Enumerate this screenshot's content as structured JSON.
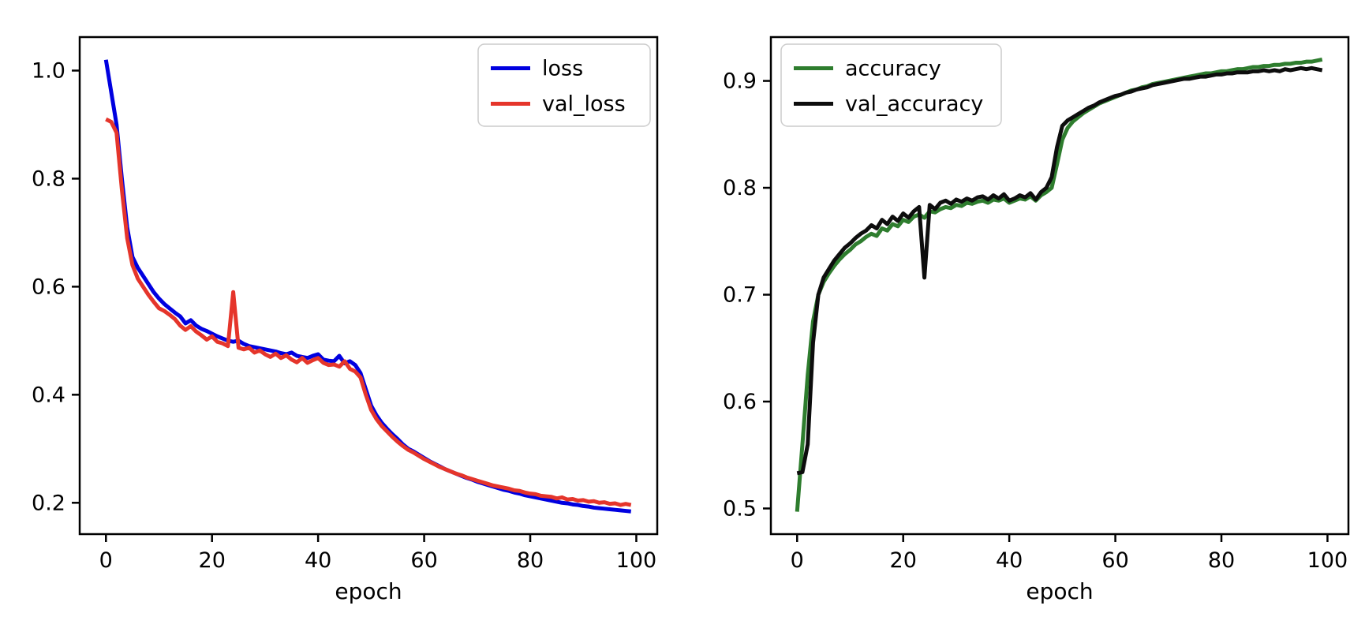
{
  "figure": {
    "background": "#ffffff",
    "text_color": "#000000",
    "spine_color": "#000000",
    "legend_border_color": "#cccccc",
    "legend_background": "#ffffff"
  },
  "chart_data": [
    {
      "id": "loss-chart",
      "type": "line",
      "title": "",
      "xlabel": "epoch",
      "ylabel": "",
      "grid": false,
      "xlim": [
        -4.95,
        103.95
      ],
      "ylim": [
        0.142,
        1.062
      ],
      "x_ticks": [
        0,
        20,
        40,
        60,
        80,
        100
      ],
      "x_tick_labels": [
        "0",
        "20",
        "40",
        "60",
        "80",
        "100"
      ],
      "y_ticks": [
        0.2,
        0.4,
        0.6,
        0.8,
        1.0
      ],
      "y_tick_labels": [
        "0.2",
        "0.4",
        "0.6",
        "0.8",
        "1.0"
      ],
      "legend": {
        "position": "upper-right",
        "labels": [
          "loss",
          "val_loss"
        ]
      },
      "x": [
        0,
        1,
        2,
        3,
        4,
        5,
        6,
        7,
        8,
        9,
        10,
        11,
        12,
        13,
        14,
        15,
        16,
        17,
        18,
        19,
        20,
        21,
        22,
        23,
        24,
        25,
        26,
        27,
        28,
        29,
        30,
        31,
        32,
        33,
        34,
        35,
        36,
        37,
        38,
        39,
        40,
        41,
        42,
        43,
        44,
        45,
        46,
        47,
        48,
        49,
        50,
        51,
        52,
        53,
        54,
        55,
        56,
        57,
        58,
        59,
        60,
        61,
        62,
        63,
        64,
        65,
        66,
        67,
        68,
        69,
        70,
        71,
        72,
        73,
        74,
        75,
        76,
        77,
        78,
        79,
        80,
        81,
        82,
        83,
        84,
        85,
        86,
        87,
        88,
        89,
        90,
        91,
        92,
        93,
        94,
        95,
        96,
        97,
        98,
        99
      ],
      "series": [
        {
          "name": "loss",
          "color": "#0000e0",
          "values": [
            1.02,
            0.96,
            0.9,
            0.8,
            0.71,
            0.655,
            0.635,
            0.62,
            0.605,
            0.59,
            0.578,
            0.568,
            0.56,
            0.552,
            0.545,
            0.532,
            0.538,
            0.528,
            0.522,
            0.518,
            0.513,
            0.508,
            0.504,
            0.5,
            0.498,
            0.5,
            0.494,
            0.49,
            0.488,
            0.486,
            0.484,
            0.482,
            0.48,
            0.477,
            0.475,
            0.478,
            0.472,
            0.47,
            0.468,
            0.472,
            0.475,
            0.465,
            0.463,
            0.462,
            0.472,
            0.458,
            0.462,
            0.455,
            0.44,
            0.41,
            0.38,
            0.362,
            0.348,
            0.337,
            0.327,
            0.318,
            0.308,
            0.3,
            0.295,
            0.289,
            0.283,
            0.277,
            0.272,
            0.267,
            0.262,
            0.258,
            0.254,
            0.25,
            0.246,
            0.243,
            0.239,
            0.236,
            0.233,
            0.23,
            0.227,
            0.224,
            0.222,
            0.219,
            0.217,
            0.214,
            0.212,
            0.21,
            0.208,
            0.206,
            0.204,
            0.202,
            0.2,
            0.199,
            0.197,
            0.196,
            0.194,
            0.193,
            0.191,
            0.19,
            0.189,
            0.188,
            0.187,
            0.186,
            0.185,
            0.184
          ]
        },
        {
          "name": "val_loss",
          "color": "#e5352b",
          "values": [
            0.91,
            0.905,
            0.885,
            0.78,
            0.69,
            0.64,
            0.615,
            0.6,
            0.585,
            0.572,
            0.56,
            0.555,
            0.548,
            0.54,
            0.528,
            0.52,
            0.527,
            0.517,
            0.51,
            0.502,
            0.508,
            0.498,
            0.495,
            0.49,
            0.59,
            0.487,
            0.484,
            0.487,
            0.478,
            0.482,
            0.475,
            0.47,
            0.476,
            0.468,
            0.473,
            0.465,
            0.46,
            0.468,
            0.459,
            0.464,
            0.468,
            0.459,
            0.455,
            0.456,
            0.452,
            0.462,
            0.448,
            0.443,
            0.432,
            0.4,
            0.372,
            0.355,
            0.342,
            0.332,
            0.322,
            0.313,
            0.305,
            0.298,
            0.293,
            0.287,
            0.281,
            0.276,
            0.271,
            0.266,
            0.262,
            0.258,
            0.254,
            0.251,
            0.247,
            0.244,
            0.241,
            0.238,
            0.235,
            0.232,
            0.23,
            0.228,
            0.226,
            0.223,
            0.222,
            0.219,
            0.217,
            0.216,
            0.213,
            0.212,
            0.211,
            0.208,
            0.21,
            0.206,
            0.207,
            0.204,
            0.205,
            0.202,
            0.203,
            0.2,
            0.201,
            0.198,
            0.199,
            0.196,
            0.198,
            0.196
          ]
        }
      ]
    },
    {
      "id": "accuracy-chart",
      "type": "line",
      "title": "",
      "xlabel": "epoch",
      "ylabel": "",
      "grid": false,
      "xlim": [
        -4.95,
        103.95
      ],
      "ylim": [
        0.476,
        0.941
      ],
      "x_ticks": [
        0,
        20,
        40,
        60,
        80,
        100
      ],
      "x_tick_labels": [
        "0",
        "20",
        "40",
        "60",
        "80",
        "100"
      ],
      "y_ticks": [
        0.5,
        0.6,
        0.7,
        0.8,
        0.9
      ],
      "y_tick_labels": [
        "0.5",
        "0.6",
        "0.7",
        "0.8",
        "0.9"
      ],
      "legend": {
        "position": "upper-left",
        "labels": [
          "accuracy",
          "val_accuracy"
        ]
      },
      "x": [
        0,
        1,
        2,
        3,
        4,
        5,
        6,
        7,
        8,
        9,
        10,
        11,
        12,
        13,
        14,
        15,
        16,
        17,
        18,
        19,
        20,
        21,
        22,
        23,
        24,
        25,
        26,
        27,
        28,
        29,
        30,
        31,
        32,
        33,
        34,
        35,
        36,
        37,
        38,
        39,
        40,
        41,
        42,
        43,
        44,
        45,
        46,
        47,
        48,
        49,
        50,
        51,
        52,
        53,
        54,
        55,
        56,
        57,
        58,
        59,
        60,
        61,
        62,
        63,
        64,
        65,
        66,
        67,
        68,
        69,
        70,
        71,
        72,
        73,
        74,
        75,
        76,
        77,
        78,
        79,
        80,
        81,
        82,
        83,
        84,
        85,
        86,
        87,
        88,
        89,
        90,
        91,
        92,
        93,
        94,
        95,
        96,
        97,
        98,
        99
      ],
      "series": [
        {
          "name": "accuracy",
          "color": "#2e7d2e",
          "values": [
            0.497,
            0.56,
            0.625,
            0.675,
            0.7,
            0.712,
            0.72,
            0.727,
            0.733,
            0.738,
            0.742,
            0.747,
            0.75,
            0.754,
            0.757,
            0.755,
            0.762,
            0.76,
            0.766,
            0.764,
            0.77,
            0.768,
            0.773,
            0.775,
            0.772,
            0.778,
            0.777,
            0.78,
            0.782,
            0.781,
            0.784,
            0.783,
            0.786,
            0.785,
            0.787,
            0.788,
            0.786,
            0.789,
            0.788,
            0.79,
            0.786,
            0.788,
            0.79,
            0.789,
            0.792,
            0.788,
            0.793,
            0.796,
            0.8,
            0.822,
            0.845,
            0.856,
            0.862,
            0.866,
            0.87,
            0.873,
            0.876,
            0.879,
            0.881,
            0.883,
            0.885,
            0.887,
            0.889,
            0.891,
            0.892,
            0.894,
            0.895,
            0.897,
            0.898,
            0.899,
            0.9,
            0.901,
            0.902,
            0.903,
            0.904,
            0.905,
            0.906,
            0.907,
            0.907,
            0.908,
            0.909,
            0.909,
            0.91,
            0.911,
            0.911,
            0.912,
            0.913,
            0.913,
            0.914,
            0.914,
            0.915,
            0.915,
            0.916,
            0.916,
            0.917,
            0.917,
            0.918,
            0.918,
            0.919,
            0.92
          ]
        },
        {
          "name": "val_accuracy",
          "color": "#0d0d0d",
          "values": [
            0.533,
            0.534,
            0.56,
            0.655,
            0.7,
            0.716,
            0.724,
            0.732,
            0.738,
            0.744,
            0.748,
            0.753,
            0.757,
            0.76,
            0.765,
            0.762,
            0.77,
            0.766,
            0.773,
            0.769,
            0.776,
            0.772,
            0.778,
            0.782,
            0.716,
            0.784,
            0.78,
            0.786,
            0.788,
            0.785,
            0.789,
            0.787,
            0.79,
            0.788,
            0.791,
            0.792,
            0.789,
            0.793,
            0.79,
            0.794,
            0.788,
            0.79,
            0.793,
            0.791,
            0.795,
            0.789,
            0.796,
            0.8,
            0.81,
            0.838,
            0.858,
            0.863,
            0.866,
            0.869,
            0.872,
            0.875,
            0.877,
            0.88,
            0.882,
            0.884,
            0.886,
            0.887,
            0.889,
            0.89,
            0.892,
            0.893,
            0.894,
            0.896,
            0.897,
            0.898,
            0.899,
            0.9,
            0.901,
            0.902,
            0.902,
            0.903,
            0.904,
            0.904,
            0.905,
            0.906,
            0.906,
            0.907,
            0.907,
            0.908,
            0.908,
            0.908,
            0.909,
            0.909,
            0.91,
            0.909,
            0.91,
            0.909,
            0.911,
            0.91,
            0.911,
            0.912,
            0.911,
            0.912,
            0.911,
            0.91
          ]
        }
      ]
    }
  ]
}
